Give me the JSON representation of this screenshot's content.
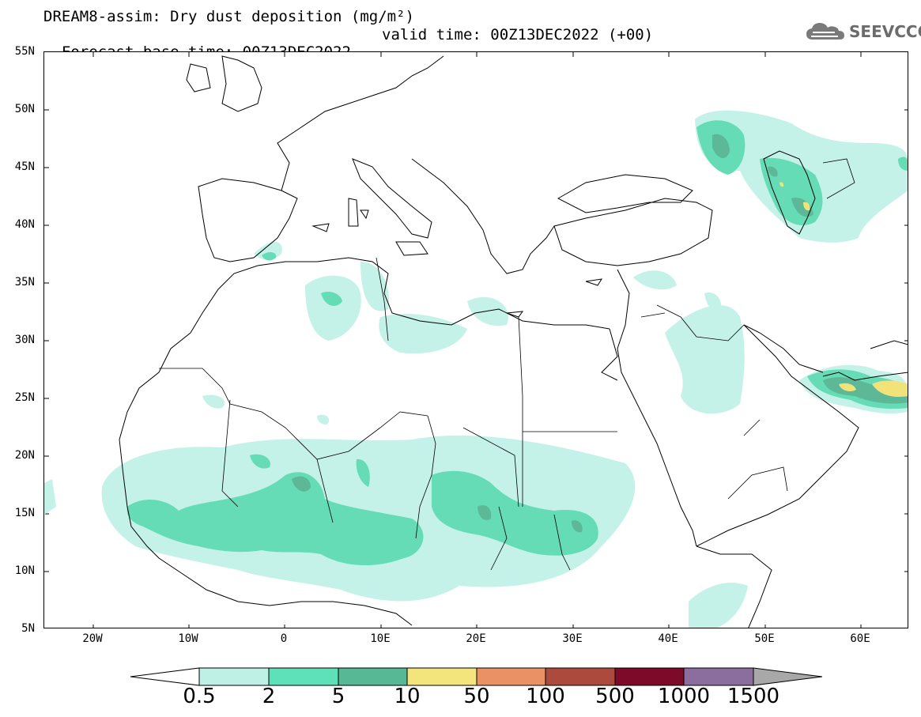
{
  "header": {
    "title_line1": "DREAM8-assim: Dry dust deposition (mg/m²)",
    "base_time": "Forecast base time: 00Z13DEC2022",
    "valid_time": "valid time: 00Z13DEC2022 (+00)",
    "logo_text": "SEEVCCC"
  },
  "axes": {
    "lat_labels": [
      "55N",
      "50N",
      "45N",
      "40N",
      "35N",
      "30N",
      "25N",
      "20N",
      "15N",
      "10N",
      "5N"
    ],
    "lon_labels": [
      "20W",
      "10W",
      "0",
      "10E",
      "20E",
      "30E",
      "40E",
      "50E",
      "60E"
    ]
  },
  "colorbar": {
    "labels": [
      "0.5",
      "2",
      "5",
      "10",
      "50",
      "100",
      "500",
      "1000",
      "1500"
    ],
    "colors": [
      "#bff0e6",
      "#5ee0b8",
      "#56b894",
      "#f4e47c",
      "#ea9266",
      "#ad4a3e",
      "#7e0a2a",
      "#8c6e9e",
      "#a8a8a8"
    ]
  },
  "map": {
    "region": "North Africa, Europe and Middle East",
    "colors": {
      "lvl1": "#c4f2e8",
      "lvl2": "#66dcb6",
      "lvl3": "#5cb896",
      "lvl4": "#f2e27a",
      "lvl5": "#eaa070"
    }
  }
}
